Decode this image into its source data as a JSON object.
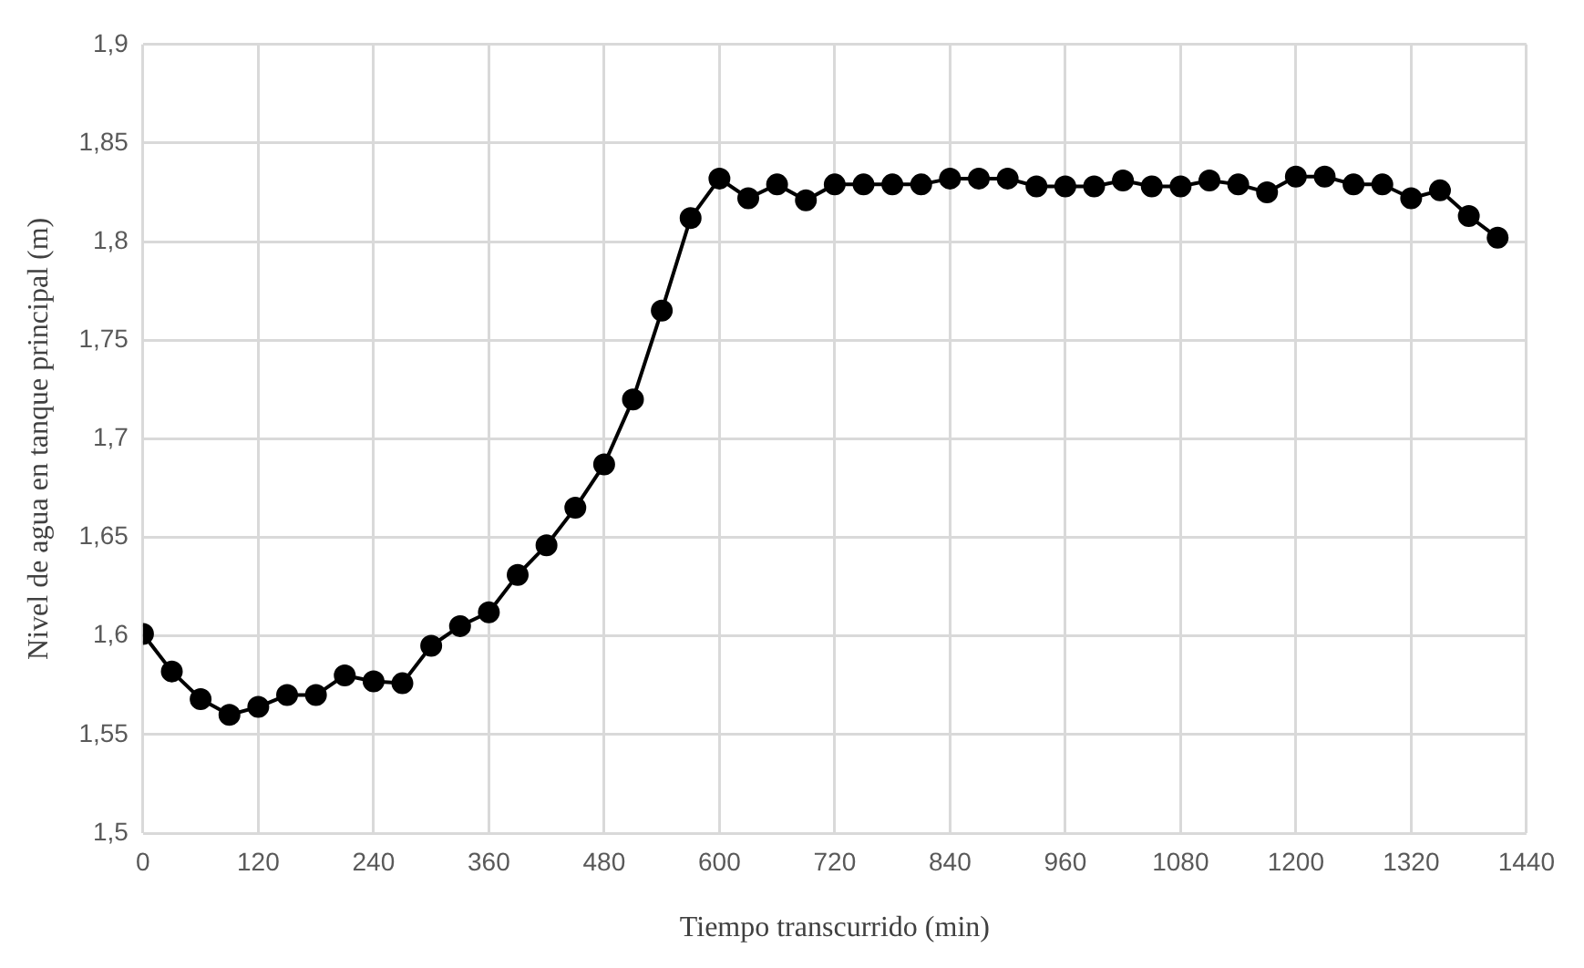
{
  "chart_data": {
    "type": "line",
    "xlabel": "Tiempo transcurrido (min)",
    "ylabel": "Nivel de agua en tanque principal (m)",
    "x": [
      0,
      30,
      60,
      90,
      120,
      150,
      180,
      210,
      240,
      270,
      300,
      330,
      360,
      390,
      420,
      450,
      480,
      510,
      540,
      570,
      600,
      630,
      660,
      690,
      720,
      750,
      780,
      810,
      840,
      870,
      900,
      930,
      960,
      990,
      1020,
      1050,
      1080,
      1110,
      1140,
      1170,
      1200,
      1230,
      1260,
      1290,
      1320,
      1350,
      1380,
      1410
    ],
    "series": [
      {
        "color": "#000000",
        "values": [
          1.601,
          1.582,
          1.568,
          1.56,
          1.564,
          1.57,
          1.57,
          1.58,
          1.577,
          1.576,
          1.595,
          1.605,
          1.612,
          1.631,
          1.646,
          1.665,
          1.687,
          1.72,
          1.765,
          1.812,
          1.832,
          1.822,
          1.829,
          1.821,
          1.829,
          1.829,
          1.829,
          1.829,
          1.832,
          1.832,
          1.832,
          1.828,
          1.828,
          1.828,
          1.831,
          1.828,
          1.828,
          1.831,
          1.829,
          1.825,
          1.833,
          1.833,
          1.829,
          1.829,
          1.822,
          1.826,
          1.813,
          1.802
        ]
      }
    ],
    "xlim": [
      0,
      1440
    ],
    "xticks": [
      0,
      120,
      240,
      360,
      480,
      600,
      720,
      840,
      960,
      1080,
      1200,
      1320,
      1440
    ],
    "ylim": [
      1.5,
      1.9
    ],
    "yticks": [
      {
        "value": 1.5,
        "label": "1,5"
      },
      {
        "value": 1.55,
        "label": "1,55"
      },
      {
        "value": 1.6,
        "label": "1,6"
      },
      {
        "value": 1.65,
        "label": "1,65"
      },
      {
        "value": 1.7,
        "label": "1,7"
      },
      {
        "value": 1.75,
        "label": "1,75"
      },
      {
        "value": 1.8,
        "label": "1,8"
      },
      {
        "value": 1.85,
        "label": "1,85"
      },
      {
        "value": 1.9,
        "label": "1,9"
      }
    ],
    "grid": true,
    "marker": "circle",
    "line_style": "solid",
    "legend": false
  }
}
